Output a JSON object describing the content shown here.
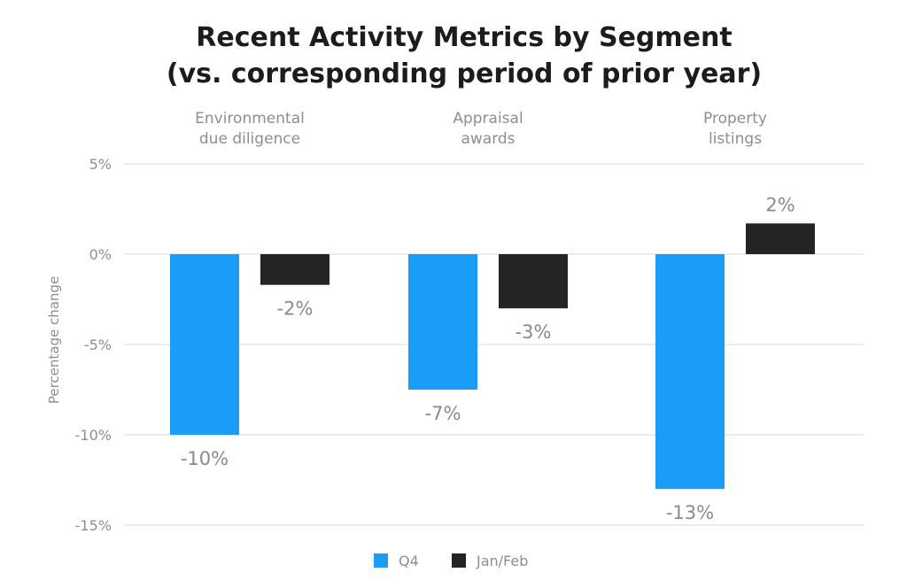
{
  "chart_data": {
    "type": "bar",
    "title_lines": [
      "Recent Activity Metrics by Segment",
      "(vs. corresponding period of prior year)"
    ],
    "categories": [
      [
        "Environmental",
        "due diligence"
      ],
      [
        "Appraisal",
        "awards"
      ],
      [
        "Property",
        "listings"
      ]
    ],
    "series": [
      {
        "name": "Q4",
        "color": "#1a9cf8",
        "values": [
          -10,
          -7.5,
          -13
        ],
        "labels": [
          "-10%",
          "-7%",
          "-13%"
        ]
      },
      {
        "name": "Jan/Feb",
        "color": "#242424",
        "values": [
          -1.7,
          -3,
          1.7
        ],
        "labels": [
          "-2%",
          "-3%",
          "2%"
        ]
      }
    ],
    "ylabel": "Percentage change",
    "ylim": [
      -15,
      5
    ],
    "yticks": [
      5,
      0,
      -5,
      -10,
      -15
    ],
    "ytick_labels": [
      "5%",
      "0%",
      "-5%",
      "-10%",
      "-15%"
    ],
    "grid": true,
    "legend_position": "bottom-center"
  }
}
